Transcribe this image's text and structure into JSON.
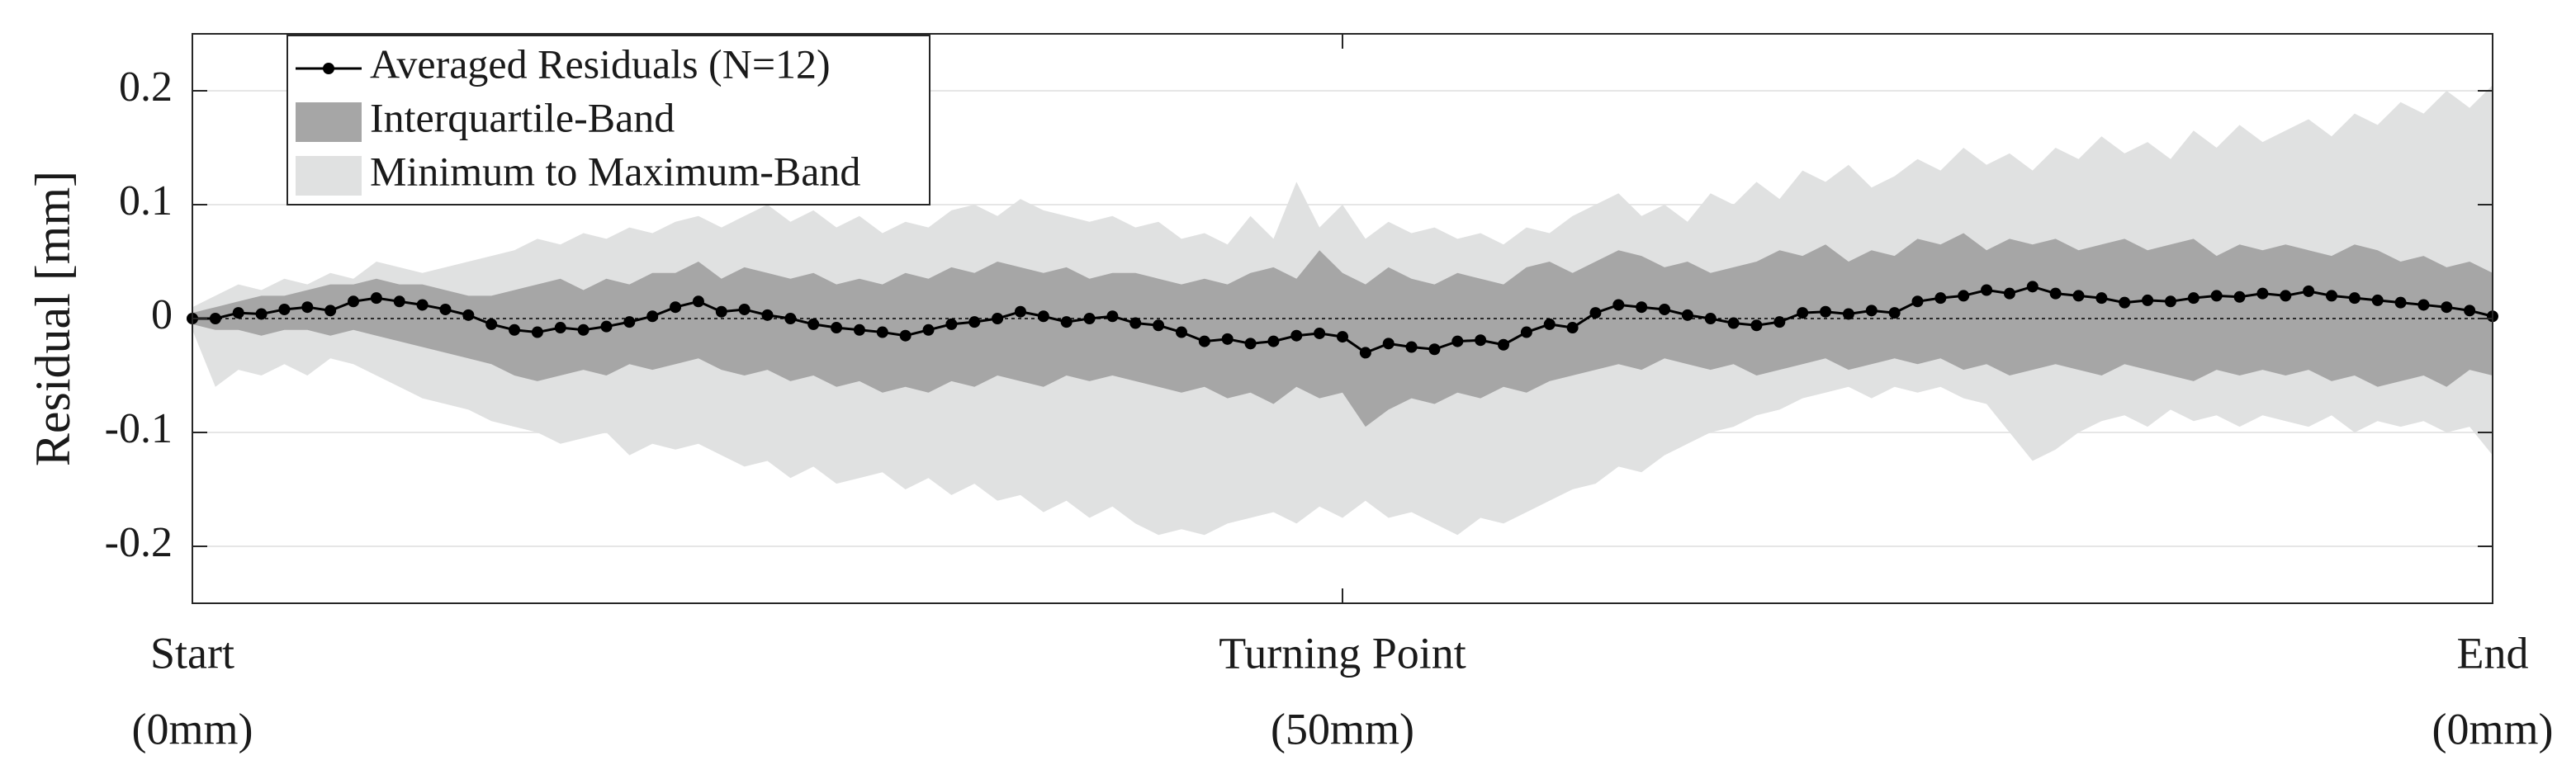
{
  "chart_data": {
    "type": "line",
    "ylabel": "Residual [mm]",
    "xlim": [
      0,
      100
    ],
    "ylim": [
      -0.25,
      0.25
    ],
    "xticks": [
      {
        "value": 0,
        "label": [
          "Start",
          "(0mm)"
        ]
      },
      {
        "value": 50,
        "label": [
          "Turning Point",
          "(50mm)"
        ]
      },
      {
        "value": 100,
        "label": [
          "End",
          "(0mm)"
        ]
      }
    ],
    "yticks": [
      -0.2,
      -0.1,
      0,
      0.1,
      0.2
    ],
    "grid": true,
    "legend": "upper left",
    "x": [
      0,
      1,
      2,
      3,
      4,
      5,
      6,
      7,
      8,
      9,
      10,
      11,
      12,
      13,
      14,
      15,
      16,
      17,
      18,
      19,
      20,
      21,
      22,
      23,
      24,
      25,
      26,
      27,
      28,
      29,
      30,
      31,
      32,
      33,
      34,
      35,
      36,
      37,
      38,
      39,
      40,
      41,
      42,
      43,
      44,
      45,
      46,
      47,
      48,
      49,
      50,
      51,
      52,
      53,
      54,
      55,
      56,
      57,
      58,
      59,
      60,
      61,
      62,
      63,
      64,
      65,
      66,
      67,
      68,
      69,
      70,
      71,
      72,
      73,
      74,
      75,
      76,
      77,
      78,
      79,
      80,
      81,
      82,
      83,
      84,
      85,
      86,
      87,
      88,
      89,
      90,
      91,
      92,
      93,
      94,
      95,
      96,
      97,
      98,
      99,
      100
    ],
    "series": [
      {
        "name": "Averaged Residuals (N=12)",
        "color": "#000000",
        "values": [
          0,
          0,
          0.005,
          0.004,
          0.008,
          0.01,
          0.007,
          0.015,
          0.018,
          0.015,
          0.012,
          0.008,
          0.003,
          -0.005,
          -0.01,
          -0.012,
          -0.008,
          -0.01,
          -0.007,
          -0.003,
          0.002,
          0.01,
          0.015,
          0.006,
          0.008,
          0.003,
          0,
          -0.005,
          -0.008,
          -0.01,
          -0.012,
          -0.015,
          -0.01,
          -0.005,
          -0.003,
          0,
          0.006,
          0.002,
          -0.003,
          0,
          0.002,
          -0.004,
          -0.006,
          -0.012,
          -0.02,
          -0.018,
          -0.022,
          -0.02,
          -0.015,
          -0.013,
          -0.016,
          -0.03,
          -0.022,
          -0.025,
          -0.027,
          -0.02,
          -0.019,
          -0.023,
          -0.012,
          -0.005,
          -0.008,
          0.005,
          0.012,
          0.01,
          0.008,
          0.003,
          0,
          -0.004,
          -0.006,
          -0.003,
          0.005,
          0.006,
          0.004,
          0.007,
          0.005,
          0.015,
          0.018,
          0.02,
          0.025,
          0.022,
          0.028,
          0.022,
          0.02,
          0.018,
          0.014,
          0.016,
          0.015,
          0.018,
          0.02,
          0.019,
          0.022,
          0.02,
          0.024,
          0.02,
          0.018,
          0.016,
          0.014,
          0.012,
          0.01,
          0.007,
          0.002
        ]
      }
    ],
    "bands": [
      {
        "name": "Interquartile-Band",
        "color": "#a6a6a6",
        "upper": [
          0.005,
          0.01,
          0.015,
          0.02,
          0.02,
          0.025,
          0.03,
          0.03,
          0.035,
          0.03,
          0.03,
          0.025,
          0.02,
          0.02,
          0.025,
          0.03,
          0.035,
          0.025,
          0.035,
          0.03,
          0.04,
          0.04,
          0.05,
          0.035,
          0.045,
          0.04,
          0.035,
          0.04,
          0.03,
          0.035,
          0.03,
          0.04,
          0.035,
          0.045,
          0.04,
          0.05,
          0.045,
          0.04,
          0.045,
          0.035,
          0.04,
          0.04,
          0.035,
          0.03,
          0.035,
          0.03,
          0.04,
          0.045,
          0.035,
          0.06,
          0.04,
          0.03,
          0.045,
          0.035,
          0.03,
          0.04,
          0.035,
          0.03,
          0.045,
          0.05,
          0.04,
          0.05,
          0.06,
          0.055,
          0.045,
          0.05,
          0.04,
          0.045,
          0.05,
          0.06,
          0.055,
          0.065,
          0.05,
          0.06,
          0.055,
          0.07,
          0.065,
          0.075,
          0.06,
          0.07,
          0.065,
          0.07,
          0.06,
          0.065,
          0.07,
          0.06,
          0.065,
          0.07,
          0.055,
          0.065,
          0.06,
          0.065,
          0.06,
          0.055,
          0.065,
          0.06,
          0.05,
          0.055,
          0.045,
          0.05,
          0.04
        ],
        "lower": [
          -0.005,
          -0.01,
          -0.01,
          -0.015,
          -0.01,
          -0.01,
          -0.015,
          -0.01,
          -0.015,
          -0.02,
          -0.025,
          -0.03,
          -0.035,
          -0.04,
          -0.05,
          -0.055,
          -0.05,
          -0.045,
          -0.05,
          -0.04,
          -0.045,
          -0.04,
          -0.035,
          -0.045,
          -0.05,
          -0.045,
          -0.055,
          -0.05,
          -0.06,
          -0.055,
          -0.065,
          -0.06,
          -0.065,
          -0.055,
          -0.06,
          -0.05,
          -0.055,
          -0.06,
          -0.05,
          -0.055,
          -0.05,
          -0.055,
          -0.06,
          -0.065,
          -0.06,
          -0.07,
          -0.065,
          -0.075,
          -0.06,
          -0.07,
          -0.065,
          -0.095,
          -0.08,
          -0.07,
          -0.075,
          -0.065,
          -0.07,
          -0.06,
          -0.065,
          -0.055,
          -0.05,
          -0.045,
          -0.04,
          -0.045,
          -0.035,
          -0.04,
          -0.045,
          -0.04,
          -0.05,
          -0.045,
          -0.04,
          -0.035,
          -0.045,
          -0.04,
          -0.035,
          -0.04,
          -0.035,
          -0.045,
          -0.04,
          -0.05,
          -0.045,
          -0.04,
          -0.045,
          -0.05,
          -0.04,
          -0.045,
          -0.05,
          -0.055,
          -0.045,
          -0.05,
          -0.045,
          -0.05,
          -0.045,
          -0.055,
          -0.05,
          -0.06,
          -0.055,
          -0.05,
          -0.06,
          -0.045,
          -0.05
        ]
      },
      {
        "name": "Minimum to Maximum-Band",
        "color": "#e0e1e1",
        "upper": [
          0.01,
          0.02,
          0.03,
          0.025,
          0.035,
          0.03,
          0.04,
          0.035,
          0.05,
          0.045,
          0.04,
          0.045,
          0.05,
          0.055,
          0.06,
          0.07,
          0.065,
          0.075,
          0.07,
          0.08,
          0.075,
          0.085,
          0.09,
          0.08,
          0.09,
          0.1,
          0.085,
          0.095,
          0.08,
          0.09,
          0.075,
          0.085,
          0.08,
          0.095,
          0.1,
          0.09,
          0.105,
          0.095,
          0.09,
          0.085,
          0.09,
          0.08,
          0.085,
          0.07,
          0.075,
          0.065,
          0.09,
          0.07,
          0.12,
          0.08,
          0.1,
          0.07,
          0.085,
          0.075,
          0.08,
          0.07,
          0.075,
          0.065,
          0.08,
          0.075,
          0.09,
          0.1,
          0.11,
          0.09,
          0.1,
          0.085,
          0.11,
          0.1,
          0.12,
          0.105,
          0.13,
          0.12,
          0.135,
          0.115,
          0.125,
          0.14,
          0.13,
          0.15,
          0.135,
          0.145,
          0.13,
          0.15,
          0.14,
          0.16,
          0.145,
          0.155,
          0.14,
          0.165,
          0.15,
          0.17,
          0.155,
          0.165,
          0.175,
          0.16,
          0.18,
          0.17,
          0.19,
          0.18,
          0.2,
          0.185,
          0.205
        ],
        "lower": [
          -0.01,
          -0.06,
          -0.045,
          -0.05,
          -0.04,
          -0.05,
          -0.035,
          -0.04,
          -0.05,
          -0.06,
          -0.07,
          -0.075,
          -0.08,
          -0.09,
          -0.095,
          -0.1,
          -0.11,
          -0.105,
          -0.1,
          -0.12,
          -0.11,
          -0.115,
          -0.11,
          -0.12,
          -0.13,
          -0.125,
          -0.14,
          -0.13,
          -0.145,
          -0.14,
          -0.135,
          -0.15,
          -0.14,
          -0.155,
          -0.145,
          -0.16,
          -0.155,
          -0.17,
          -0.16,
          -0.175,
          -0.165,
          -0.18,
          -0.19,
          -0.185,
          -0.19,
          -0.18,
          -0.175,
          -0.17,
          -0.18,
          -0.165,
          -0.175,
          -0.16,
          -0.175,
          -0.17,
          -0.18,
          -0.19,
          -0.175,
          -0.18,
          -0.17,
          -0.16,
          -0.15,
          -0.145,
          -0.13,
          -0.135,
          -0.12,
          -0.11,
          -0.1,
          -0.095,
          -0.085,
          -0.08,
          -0.07,
          -0.065,
          -0.06,
          -0.07,
          -0.06,
          -0.065,
          -0.06,
          -0.07,
          -0.075,
          -0.1,
          -0.125,
          -0.115,
          -0.1,
          -0.09,
          -0.085,
          -0.095,
          -0.08,
          -0.09,
          -0.085,
          -0.095,
          -0.085,
          -0.09,
          -0.095,
          -0.085,
          -0.1,
          -0.09,
          -0.095,
          -0.09,
          -0.1,
          -0.095,
          -0.12
        ]
      }
    ]
  }
}
